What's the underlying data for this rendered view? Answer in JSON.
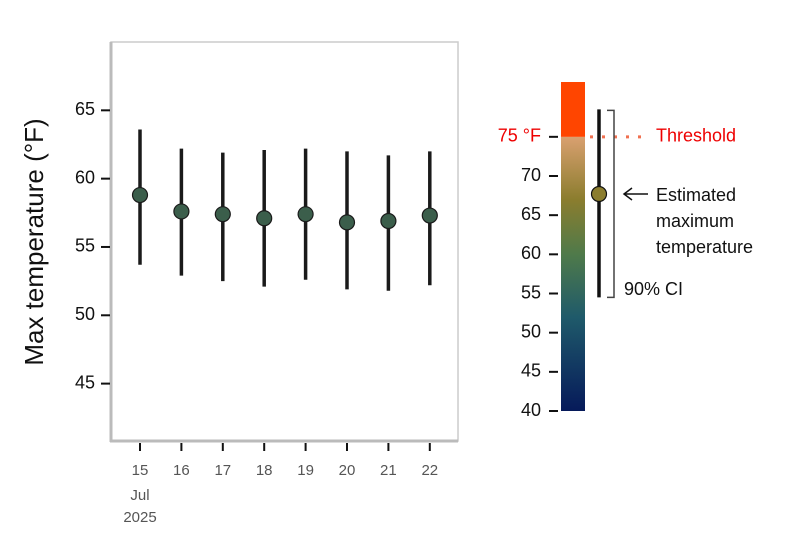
{
  "chart_data": {
    "type": "errorbar",
    "y_label": "Max temperature (°F)",
    "categories": [
      "15",
      "16",
      "17",
      "18",
      "19",
      "20",
      "21",
      "22"
    ],
    "category_sublabels": [
      "Jul",
      "2025"
    ],
    "values": [
      58.8,
      57.6,
      57.4,
      57.1,
      57.4,
      56.8,
      56.9,
      57.3
    ],
    "low": [
      53.7,
      52.9,
      52.5,
      52.1,
      52.6,
      51.9,
      51.8,
      52.2
    ],
    "high": [
      63.6,
      62.2,
      61.9,
      62.1,
      62.2,
      62.0,
      61.7,
      62.0
    ],
    "color": "#3b5e4b",
    "ylim": [
      40.8,
      70
    ],
    "yticks": [
      45,
      50,
      55,
      60,
      65
    ],
    "legend": {
      "ylim": [
        40,
        82
      ],
      "yticks": [
        40,
        45,
        50,
        55,
        60,
        65,
        70,
        {
          "value": 75,
          "label": "75 °F"
        }
      ],
      "threshold": 75,
      "threshold_label": "Threshold",
      "threshold_color": "#ff4500",
      "example_value": 67.7,
      "example_low": 54.5,
      "example_high": 78.5,
      "example_color": "#8b7d2e",
      "estimate_label": [
        "Estimated",
        "maximum",
        "temperature"
      ],
      "ci_label": "90% CI",
      "gradient": [
        {
          "value": 40,
          "color": "#061a5a"
        },
        {
          "value": 52,
          "color": "#1f5a6a"
        },
        {
          "value": 60,
          "color": "#4f7a4a"
        },
        {
          "value": 67,
          "color": "#8b7d2e"
        },
        {
          "value": 75,
          "color": "#d9a070"
        }
      ]
    }
  }
}
